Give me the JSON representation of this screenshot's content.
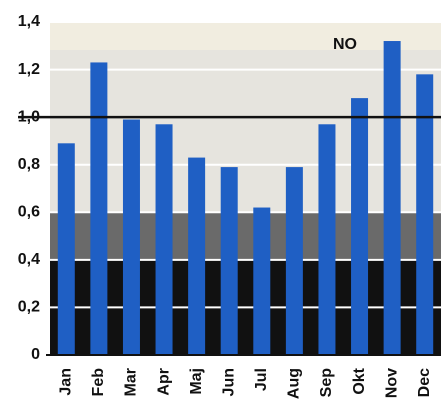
{
  "chart_data": {
    "type": "bar",
    "annotation": "NO",
    "categories": [
      "Jan",
      "Feb",
      "Mar",
      "Apr",
      "Maj",
      "Jun",
      "Jul",
      "Aug",
      "Sep",
      "Okt",
      "Nov",
      "Dec"
    ],
    "values": [
      0.89,
      1.23,
      0.99,
      0.97,
      0.83,
      0.79,
      0.62,
      0.79,
      0.97,
      1.08,
      1.32,
      1.18
    ],
    "color": "#1f5fc4",
    "ylim": [
      0,
      1.4
    ],
    "yticks": [
      0,
      {
        "value": 0.2,
        "label": "0,2"
      },
      {
        "value": 0.4,
        "label": "0,4"
      },
      {
        "value": 0.6,
        "label": "0,6"
      },
      {
        "value": 0.8,
        "label": "0,8"
      },
      {
        "value": 1,
        "label": "1,0"
      },
      {
        "value": 1.2,
        "label": "1,2"
      },
      {
        "value": 1.4,
        "label": "1,4"
      }
    ],
    "reference_line": 1,
    "grid": true
  }
}
